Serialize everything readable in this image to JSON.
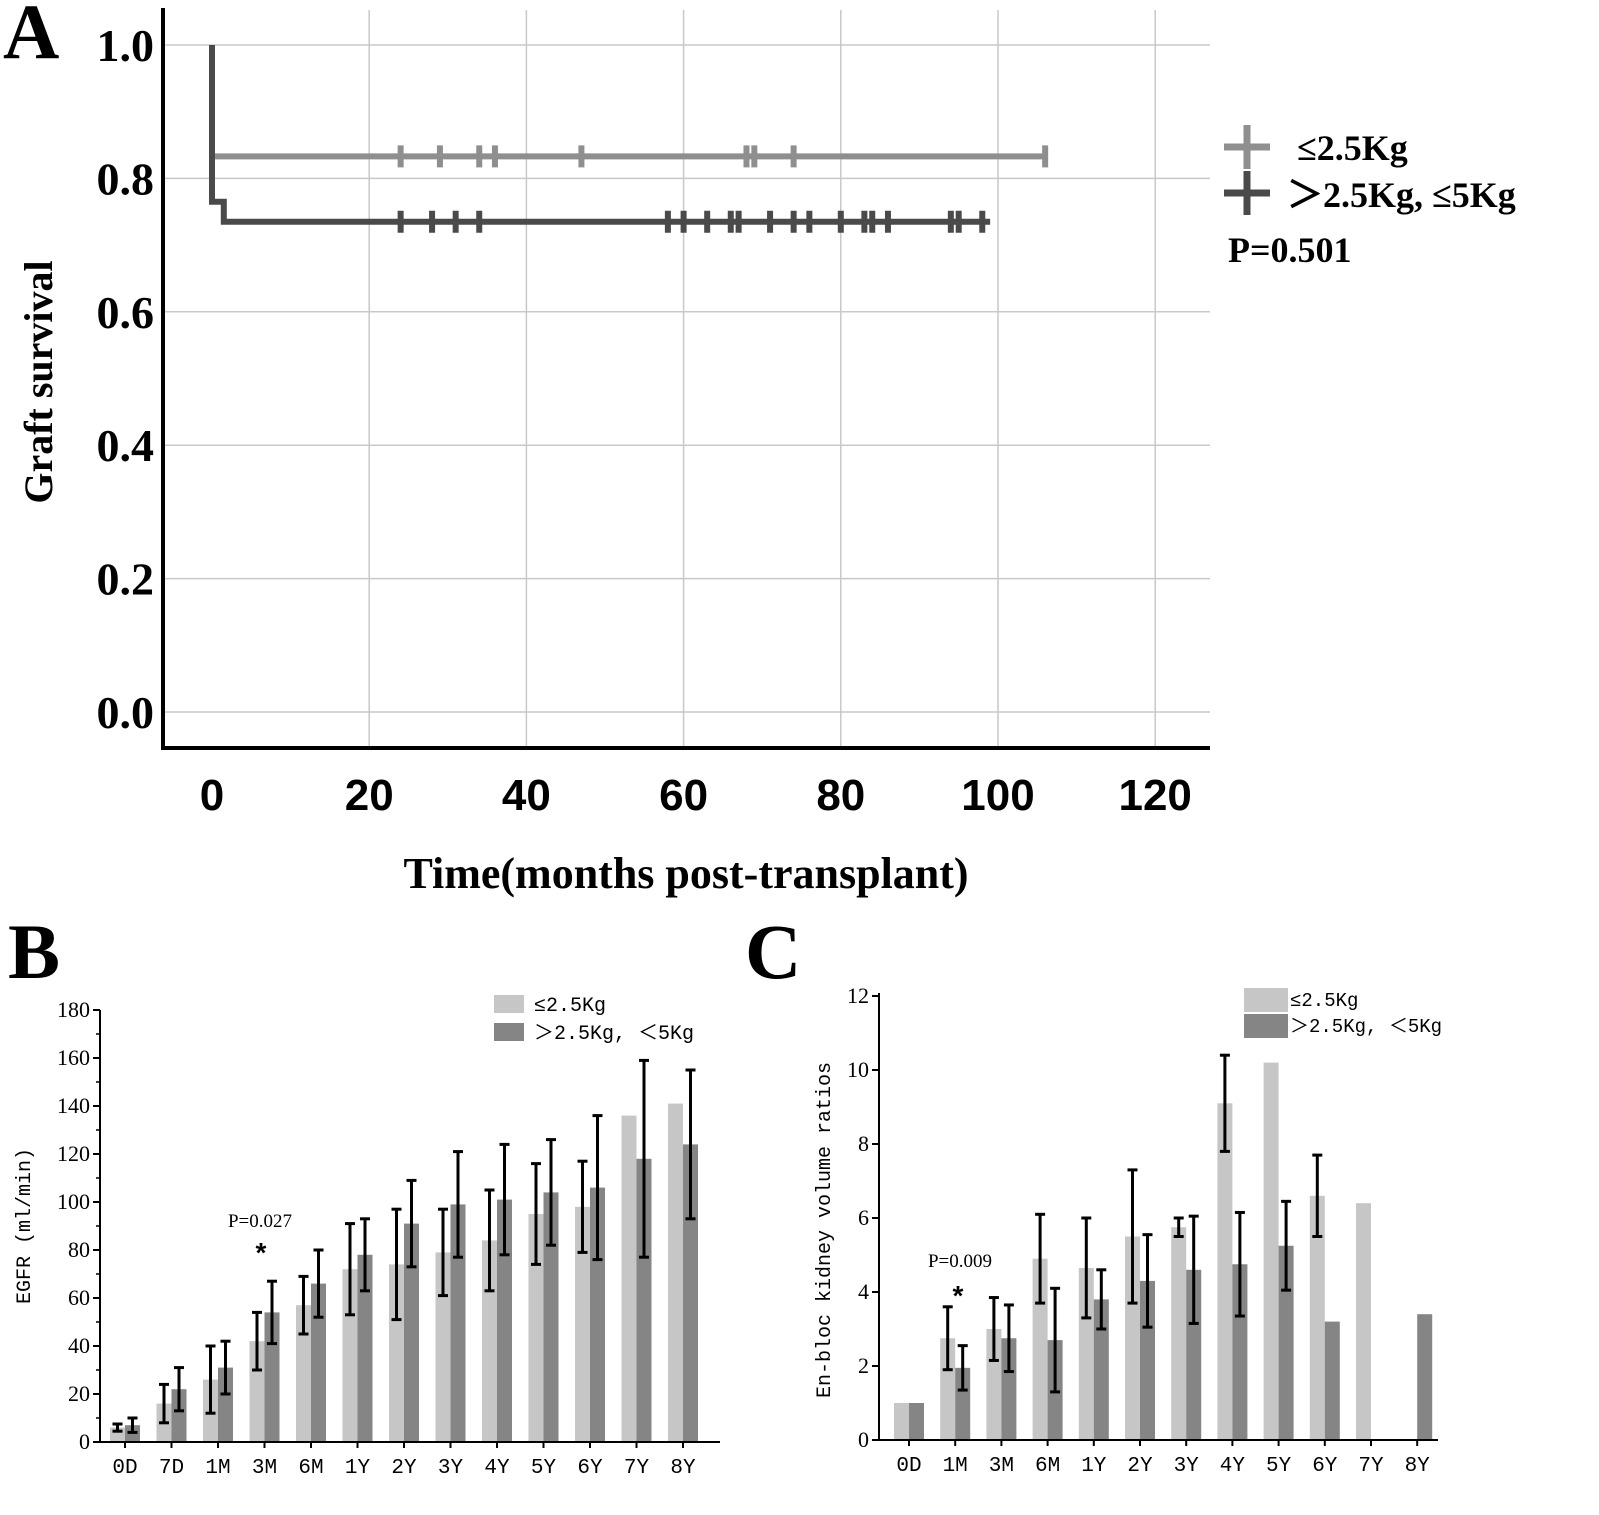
{
  "panels": {
    "a": {
      "letter": "A"
    },
    "b": {
      "letter": "B"
    },
    "c": {
      "letter": "C"
    }
  },
  "chart_data": [
    {
      "id": "a",
      "type": "line",
      "subtype": "kaplan-meier",
      "title": "",
      "xlabel": "Time(months post-transplant)",
      "ylabel": "Graft survival",
      "xlim": [
        0,
        120
      ],
      "ylim": [
        0,
        1
      ],
      "xticks": [
        0,
        20,
        40,
        60,
        80,
        100,
        120
      ],
      "xtick_labels": [
        "0",
        "20",
        "40",
        "60",
        "80",
        "100",
        "120"
      ],
      "yticks": [
        0,
        0.2,
        0.4,
        0.6,
        0.8,
        1.0
      ],
      "ytick_labels": [
        "0.0",
        "0.2",
        "0.4",
        "0.6",
        "0.8",
        "1.0"
      ],
      "grid": true,
      "legend_position": "right",
      "annotation": "P=0.501",
      "series": [
        {
          "name": "≤2.5Kg",
          "color": "#8f8f8f",
          "steps": [
            [
              0,
              1.0
            ],
            [
              0,
              0.833
            ],
            [
              106,
              0.833
            ]
          ],
          "censored": [
            24,
            29,
            34,
            36,
            47,
            68,
            69,
            74,
            106
          ]
        },
        {
          "name": "＞2.5Kg, ≤5Kg",
          "color": "#4a4a4a",
          "steps": [
            [
              0,
              1.0
            ],
            [
              0,
              0.765
            ],
            [
              1.5,
              0.765
            ],
            [
              1.5,
              0.735
            ],
            [
              99,
              0.735
            ]
          ],
          "censored": [
            24,
            28,
            31,
            34,
            58,
            60,
            63,
            66,
            67,
            71,
            74,
            76,
            80,
            83,
            84,
            86,
            94,
            95,
            98
          ]
        }
      ]
    },
    {
      "id": "b",
      "type": "bar",
      "title": "",
      "xlabel": "",
      "ylabel": "EGFR (ml/min)",
      "ylim": [
        0,
        180
      ],
      "yticks": [
        0,
        20,
        40,
        60,
        80,
        100,
        120,
        140,
        160,
        180
      ],
      "grid": false,
      "legend_position": "top-right",
      "categories": [
        "0D",
        "7D",
        "1M",
        "3M",
        "6M",
        "1Y",
        "2Y",
        "3Y",
        "4Y",
        "5Y",
        "6Y",
        "7Y",
        "8Y"
      ],
      "series": [
        {
          "name": "≤2.5Kg",
          "color": "#c6c6c6",
          "values": [
            6,
            16,
            26,
            42,
            57,
            72,
            74,
            79,
            84,
            95,
            98,
            136,
            141
          ],
          "errors": [
            1.5,
            8,
            14,
            12,
            12,
            19,
            23,
            18,
            21,
            21,
            19,
            null,
            null
          ]
        },
        {
          "name": "＞2.5Kg, ＜5Kg",
          "color": "#858585",
          "values": [
            7,
            22,
            31,
            54,
            66,
            78,
            91,
            99,
            101,
            104,
            106,
            118,
            124
          ],
          "errors": [
            3,
            9,
            11,
            13,
            14,
            15,
            18,
            22,
            23,
            22,
            30,
            41,
            31
          ]
        }
      ],
      "annotations": [
        {
          "category": "3M",
          "text": "P=0.027",
          "marker": "*"
        }
      ]
    },
    {
      "id": "c",
      "type": "bar",
      "title": "",
      "xlabel": "",
      "ylabel": "En-bloc kidney volume ratios",
      "ylim": [
        0,
        12
      ],
      "yticks": [
        0,
        2,
        4,
        6,
        8,
        10,
        12
      ],
      "grid": false,
      "legend_position": "top-right",
      "categories": [
        "0D",
        "1M",
        "3M",
        "6M",
        "1Y",
        "2Y",
        "3Y",
        "4Y",
        "5Y",
        "6Y",
        "7Y",
        "8Y"
      ],
      "series": [
        {
          "name": "≤2.5Kg",
          "color": "#c6c6c6",
          "values": [
            1,
            2.75,
            3.0,
            4.9,
            4.65,
            5.5,
            5.75,
            9.1,
            10.2,
            6.6,
            6.4,
            null
          ],
          "errors": [
            null,
            0.85,
            0.85,
            1.2,
            1.35,
            1.8,
            0.25,
            1.3,
            null,
            1.1,
            null,
            null
          ]
        },
        {
          "name": "＞2.5Kg, ＜5Kg",
          "color": "#858585",
          "values": [
            1,
            1.95,
            2.75,
            2.7,
            3.8,
            4.3,
            4.6,
            4.75,
            5.25,
            3.2,
            null,
            3.4
          ],
          "errors": [
            null,
            0.6,
            0.9,
            1.4,
            0.8,
            1.25,
            1.45,
            1.4,
            1.2,
            null,
            null,
            null
          ]
        }
      ],
      "annotations": [
        {
          "category": "1M",
          "text": "P=0.009",
          "marker": "*"
        }
      ]
    }
  ]
}
